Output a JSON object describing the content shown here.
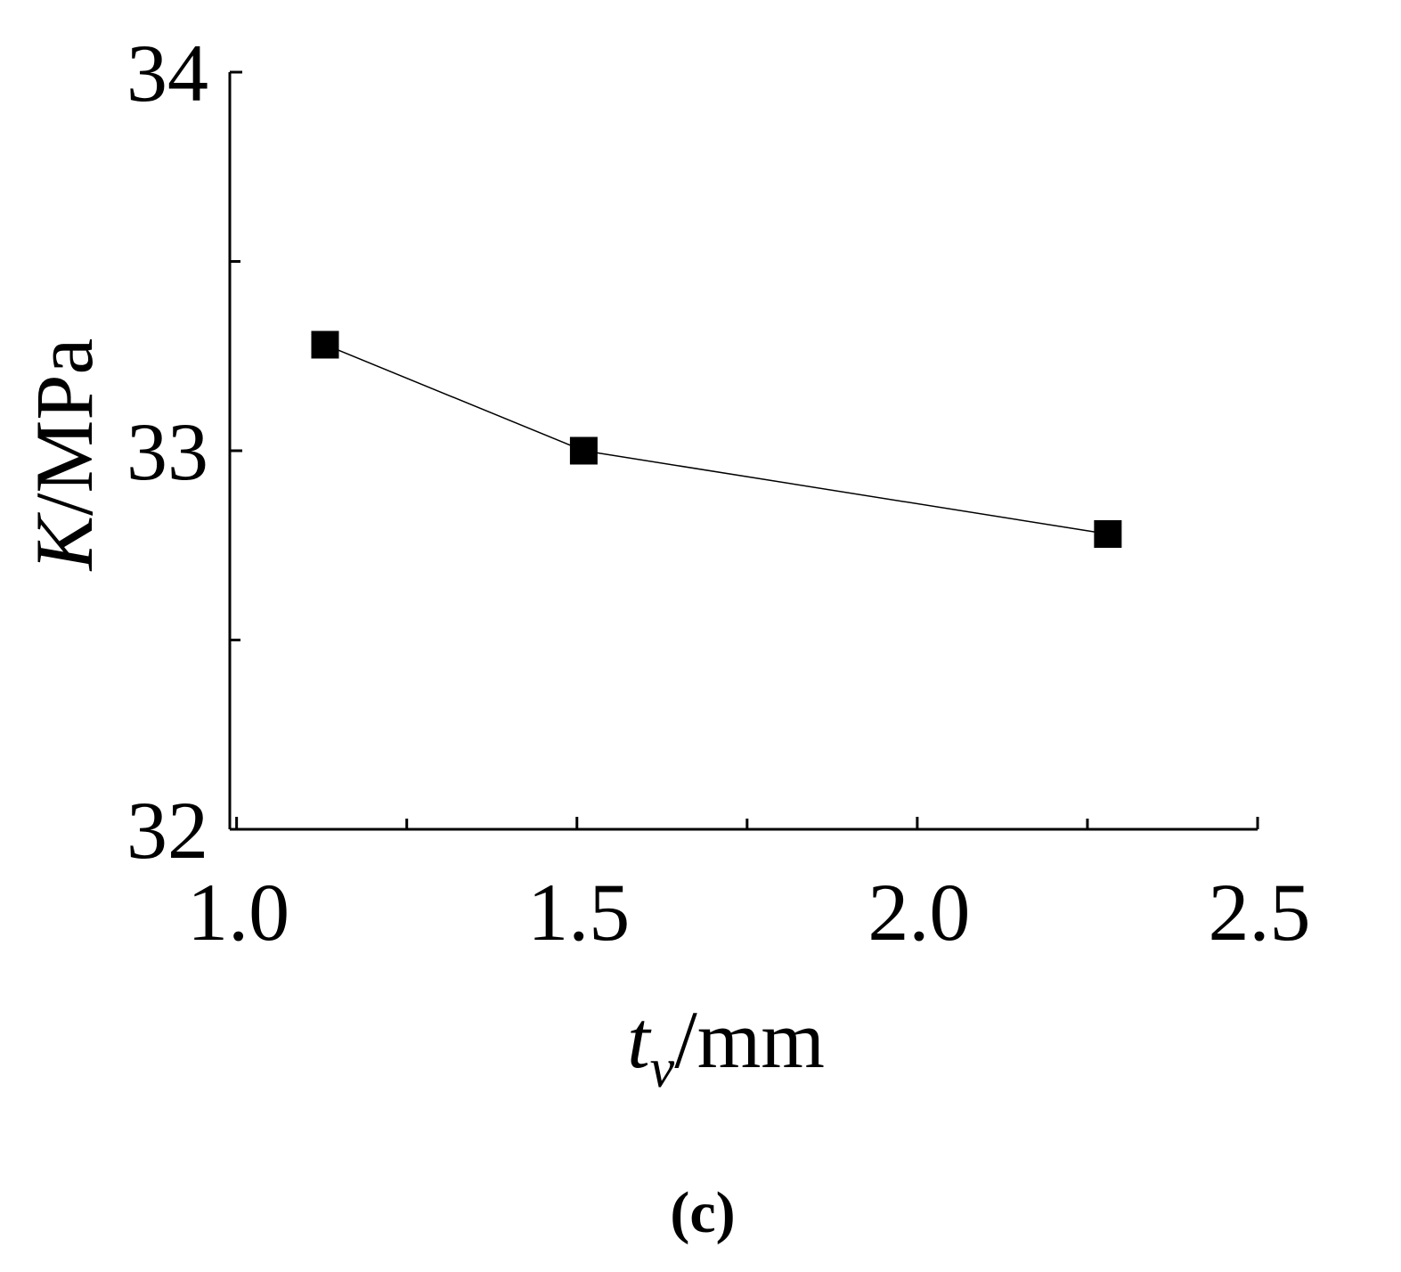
{
  "chart_data": {
    "type": "line",
    "title": "",
    "xlabel": {
      "main": "t",
      "subscript": "v",
      "unit": "/mm"
    },
    "ylabel": {
      "main": "K",
      "unit": "/MPa"
    },
    "xlim": [
      0.99,
      2.5
    ],
    "ylim": [
      32,
      34
    ],
    "x_ticks": [
      "1.0",
      "1.5",
      "2.0",
      "2.5"
    ],
    "y_ticks": [
      "32",
      "33",
      "34"
    ],
    "x_minor_ticks": [
      1.25,
      1.75,
      2.25
    ],
    "y_minor_ticks": [
      32.5,
      33.5
    ],
    "grid": false,
    "legend": "none",
    "series": [
      {
        "marker": "square",
        "color": "#000000",
        "points": [
          {
            "x": 1.13,
            "y": 33.28
          },
          {
            "x": 1.51,
            "y": 33.0
          },
          {
            "x": 2.28,
            "y": 32.78
          }
        ]
      }
    ],
    "panel_label": "(c)"
  }
}
